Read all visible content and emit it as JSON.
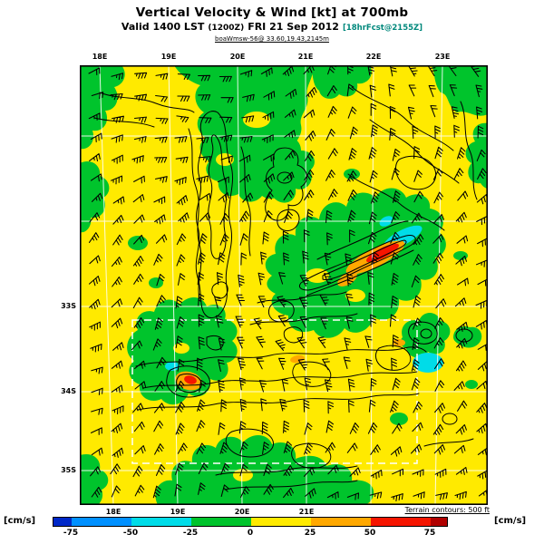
{
  "header": {
    "title": "Vertical Velocity & Wind [kt] at 700mb",
    "valid_prefix": "Valid 1400 LST",
    "valid_zulu": "(1200Z)",
    "valid_date": "FRI 21 Sep 2012",
    "forecast_tag": "[18hrFcst@2155Z]",
    "forecast_tag_color": "#00887C",
    "model_line": "boaWmsw-56@ 33.60,19.43,2145m"
  },
  "map": {
    "top_ticks": [
      "18E",
      "19E",
      "20E",
      "21E",
      "22E",
      "23E"
    ],
    "bottom_ticks": [
      "18E",
      "19E",
      "20E",
      "21E"
    ],
    "left_ticks": [
      "33S",
      "34S",
      "35S"
    ],
    "terrain_note": "Terrain contours: 500 ft",
    "fill_colors": {
      "strong_sink": "#0028C8",
      "sink": "#0090FF",
      "weak_sink": "#00DCE8",
      "weak_negative": "#00C42C",
      "weak_positive": "#FFEA00",
      "lift": "#FFA800",
      "strong_lift": "#F51500"
    }
  },
  "colorbar": {
    "unit_left": "[cm/s]",
    "unit_right": "[cm/s]",
    "tick_labels": [
      "-75",
      "-50",
      "-25",
      "0",
      "25",
      "50",
      "75"
    ],
    "segment_colors": [
      "#0028C8",
      "#0090FF",
      "#00DCE8",
      "#00C42C",
      "#FFEA00",
      "#FFA800",
      "#F51500",
      "#B00000"
    ]
  },
  "chart_data": {
    "type": "heatmap",
    "title": "Vertical Velocity & Wind [kt] at 700mb",
    "valid_time": "1400 LST (1200Z) FRI 21 Sep 2012",
    "forecast": "18hrFcst@2155Z",
    "level": "700mb",
    "field": "vertical velocity",
    "field_units": "cm/s",
    "wind_units": "kt",
    "x_axis": {
      "type": "longitude",
      "ticks": [
        "18E",
        "19E",
        "20E",
        "21E",
        "22E",
        "23E"
      ]
    },
    "y_axis": {
      "type": "latitude",
      "ticks": [
        "33S",
        "34S",
        "35S"
      ]
    },
    "colorbar_boundaries": [
      -75,
      -50,
      -25,
      0,
      25,
      50,
      75
    ],
    "colorbar_colors": [
      "#0028C8",
      "#0090FF",
      "#00DCE8",
      "#00C42C",
      "#FFEA00",
      "#FFA800",
      "#F51500",
      "#B00000"
    ],
    "terrain_contour_interval": "500 ft",
    "overlays": [
      "wind barbs (kt)",
      "terrain contours",
      "lat-lon grid (white)",
      "inner nest outline (white dashed)"
    ],
    "field_summary": [
      {
        "band": "0 to 25 (yellow)",
        "coverage": "dominant background over most of the domain"
      },
      {
        "band": "-25 to 0 (green)",
        "coverage": "broad patches over the mountain ranges: top-centre, centre-right mass, left edge and along the south coast"
      },
      {
        "band": "-50 to -25 (cyan)",
        "coverage": "small streaks near 21.6E 33.4S, 22.1E 34.3S and 19.3E 34.1S"
      },
      {
        "band": "25 to 50 (orange)",
        "coverage": "lee-wave streaks near 21.2E 33.5S and 19.5E 34.2S"
      },
      {
        "band": "50 to 75 (red)",
        "coverage": "narrow cores inside the orange lee-wave streaks"
      }
    ]
  }
}
